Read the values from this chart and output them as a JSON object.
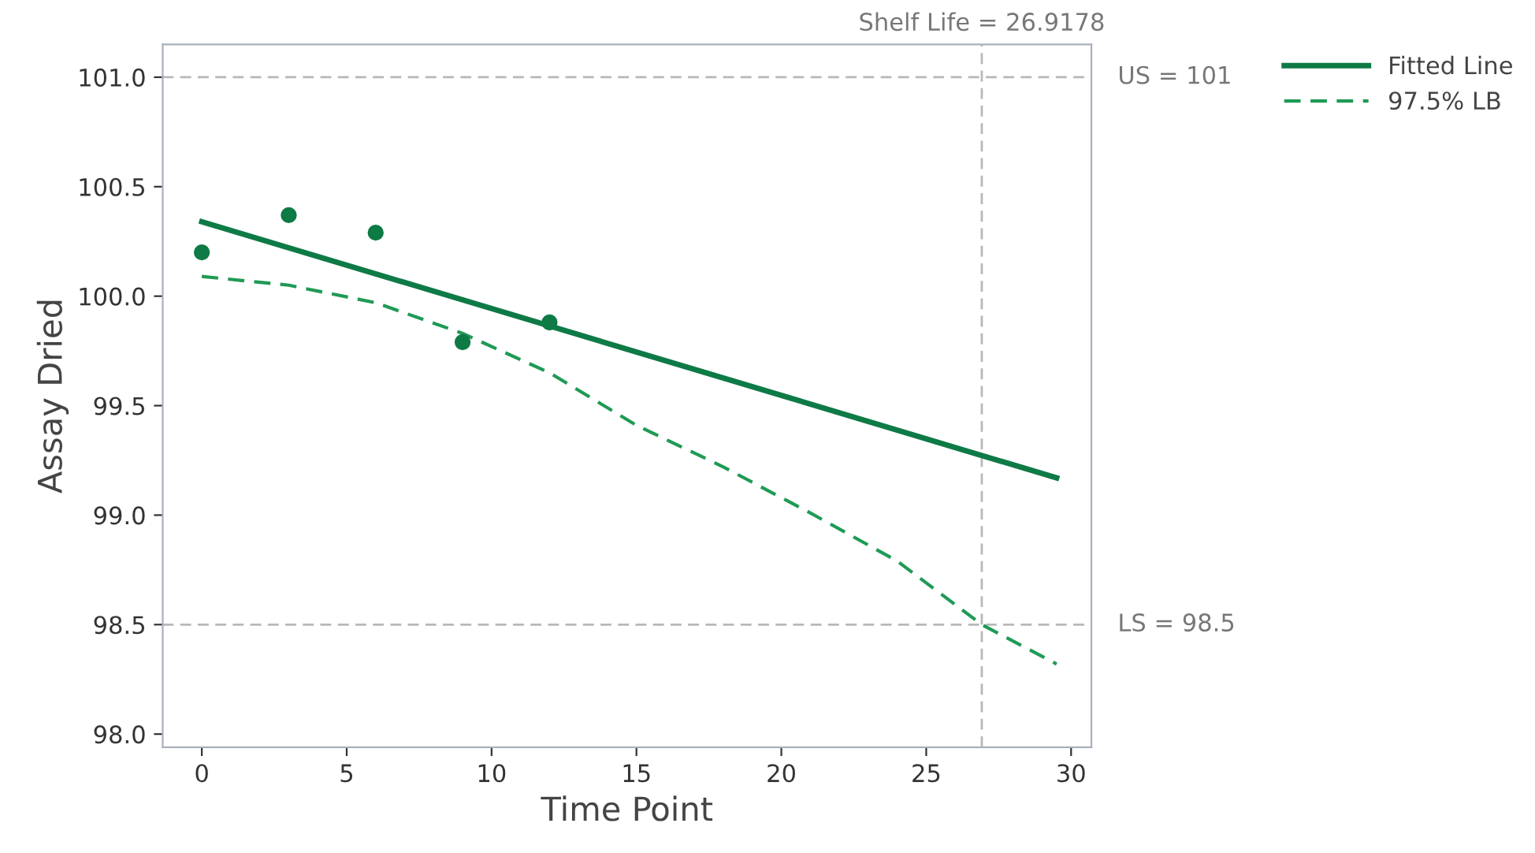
{
  "chart_data": {
    "type": "line",
    "xlabel": "Time Point",
    "ylabel": "Assay Dried",
    "xlim": [
      -1.35,
      30.7
    ],
    "ylim": [
      97.94,
      101.15
    ],
    "xticks": [
      0,
      5,
      10,
      15,
      20,
      25,
      30
    ],
    "yticks": [
      {
        "value": 98,
        "label": "98.0"
      },
      {
        "value": 98.5,
        "label": "98.5"
      },
      {
        "value": 99,
        "label": "99.0"
      },
      {
        "value": 99.5,
        "label": "99.5"
      },
      {
        "value": 100,
        "label": "100.0"
      },
      {
        "value": 100.5,
        "label": "100.5"
      },
      {
        "value": 101,
        "label": "101.0"
      }
    ],
    "grid": false,
    "legend": "top right",
    "series": [
      {
        "type": "scatter",
        "color": "#0e7a45",
        "marker": "circle",
        "x": [
          0,
          3,
          6,
          9,
          12
        ],
        "values": [
          100.2,
          100.37,
          100.29,
          99.79,
          99.88
        ]
      },
      {
        "name": "Fitted Line",
        "color": "#0e7a45",
        "line_style": "solid",
        "marker": "none",
        "x": [
          0,
          29.5
        ],
        "values": [
          100.34,
          99.17
        ]
      },
      {
        "name": "97.5% LB",
        "color": "#1f9a55",
        "line_style": "dashed",
        "marker": "none",
        "x": [
          0,
          3,
          6,
          9,
          12,
          15,
          18,
          21,
          24,
          26.9178,
          29.5
        ],
        "values": [
          100.09,
          100.05,
          99.97,
          99.83,
          99.65,
          99.41,
          99.22,
          99.01,
          98.79,
          98.5,
          98.32
        ]
      }
    ],
    "ref_lines": [
      {
        "axis": "y",
        "value": 101,
        "label": "US = 101",
        "color": "#b8b8b8",
        "line_style": "dashed"
      },
      {
        "axis": "y",
        "value": 98.5,
        "label": "LS = 98.5",
        "color": "#b8b8b8",
        "line_style": "dashed"
      },
      {
        "axis": "x",
        "value": 26.9178,
        "label": "Shelf Life = 26.9178",
        "color": "#b8b8b8",
        "line_style": "dashed"
      }
    ]
  }
}
